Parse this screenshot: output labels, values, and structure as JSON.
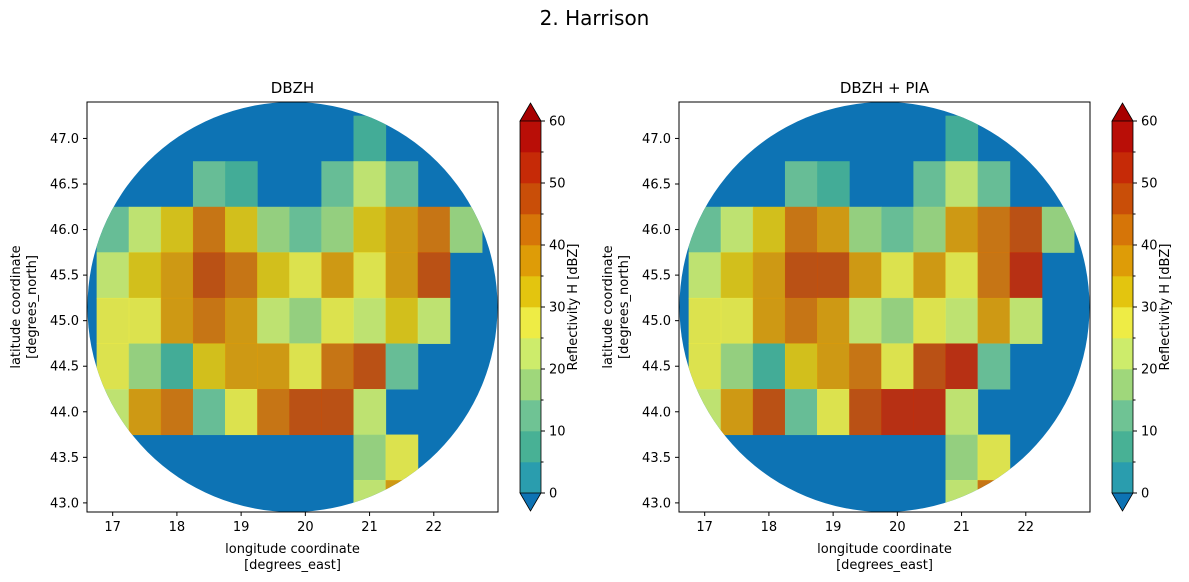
{
  "figure": {
    "suptitle": "2. Harrison"
  },
  "colorbar": {
    "label": "Reflectivity H [dBZ]",
    "ticks": [
      0,
      10,
      20,
      30,
      40,
      50,
      60
    ],
    "colors": [
      "#0d73b4",
      "#2a9dae",
      "#48b195",
      "#6fc394",
      "#9fd77b",
      "#cdec6b",
      "#eeec45",
      "#e3c50f",
      "#de9c07",
      "#d67508",
      "#c94e08",
      "#c62a07",
      "#b90e07",
      "#a70000"
    ]
  },
  "chart_data": [
    {
      "type": "heatmap",
      "title": "DBZH",
      "xlabel": "longitude coordinate\n[degrees_east]",
      "ylabel": "latitude coordinate\n[degrees_north]",
      "xlim": [
        16.6,
        23.0
      ],
      "ylim": [
        42.9,
        47.4
      ],
      "xticks": [
        17,
        18,
        19,
        20,
        21,
        22
      ],
      "yticks": [
        43.0,
        43.5,
        44.0,
        44.5,
        45.0,
        45.5,
        46.0,
        46.5,
        47.0
      ],
      "x": [
        17.0,
        17.5,
        18.0,
        18.5,
        19.0,
        19.5,
        20.0,
        20.5,
        21.0,
        21.5,
        22.0,
        22.5
      ],
      "y": [
        47.0,
        46.5,
        46.0,
        45.5,
        45.0,
        44.5,
        44.0,
        43.5,
        43.0
      ],
      "z": [
        [
          0,
          0,
          0,
          0,
          0,
          0,
          0,
          0,
          5,
          0,
          0,
          0
        ],
        [
          0,
          0,
          0,
          10,
          5,
          0,
          0,
          10,
          20,
          10,
          0,
          0
        ],
        [
          10,
          20,
          30,
          40,
          30,
          15,
          10,
          15,
          30,
          35,
          40,
          15
        ],
        [
          20,
          30,
          35,
          45,
          40,
          30,
          25,
          35,
          25,
          35,
          45,
          0
        ],
        [
          25,
          25,
          35,
          40,
          35,
          20,
          15,
          25,
          20,
          30,
          20,
          0
        ],
        [
          25,
          15,
          5,
          30,
          35,
          35,
          25,
          40,
          45,
          10,
          0,
          0
        ],
        [
          20,
          35,
          40,
          10,
          25,
          40,
          45,
          45,
          20,
          0,
          0,
          0
        ],
        [
          0,
          0,
          0,
          0,
          0,
          0,
          0,
          0,
          15,
          25,
          0,
          0
        ],
        [
          0,
          0,
          0,
          0,
          0,
          0,
          0,
          0,
          20,
          35,
          0,
          0
        ]
      ],
      "colorbar_label": "Reflectivity H [dBZ]",
      "vmin": 0,
      "vmax": 60
    },
    {
      "type": "heatmap",
      "title": "DBZH + PIA",
      "xlabel": "longitude coordinate\n[degrees_east]",
      "ylabel": "latitude coordinate\n[degrees_north]",
      "xlim": [
        16.6,
        23.0
      ],
      "ylim": [
        42.9,
        47.4
      ],
      "xticks": [
        17,
        18,
        19,
        20,
        21,
        22
      ],
      "yticks": [
        43.0,
        43.5,
        44.0,
        44.5,
        45.0,
        45.5,
        46.0,
        46.5,
        47.0
      ],
      "x": [
        17.0,
        17.5,
        18.0,
        18.5,
        19.0,
        19.5,
        20.0,
        20.5,
        21.0,
        21.5,
        22.0,
        22.5
      ],
      "y": [
        47.0,
        46.5,
        46.0,
        45.5,
        45.0,
        44.5,
        44.0,
        43.5,
        43.0
      ],
      "z": [
        [
          0,
          0,
          0,
          0,
          0,
          0,
          0,
          0,
          5,
          0,
          0,
          0
        ],
        [
          0,
          0,
          0,
          10,
          5,
          0,
          0,
          10,
          20,
          10,
          0,
          0
        ],
        [
          10,
          20,
          30,
          40,
          35,
          15,
          10,
          15,
          35,
          40,
          45,
          15
        ],
        [
          20,
          30,
          35,
          45,
          45,
          35,
          25,
          35,
          25,
          40,
          50,
          0
        ],
        [
          25,
          25,
          35,
          40,
          35,
          20,
          15,
          25,
          20,
          35,
          20,
          0
        ],
        [
          25,
          15,
          5,
          30,
          35,
          40,
          25,
          45,
          50,
          10,
          0,
          0
        ],
        [
          20,
          35,
          45,
          10,
          25,
          45,
          50,
          50,
          20,
          0,
          0,
          0
        ],
        [
          0,
          0,
          0,
          0,
          0,
          0,
          0,
          0,
          15,
          25,
          0,
          0
        ],
        [
          0,
          0,
          0,
          0,
          0,
          0,
          0,
          0,
          20,
          40,
          0,
          0
        ]
      ],
      "colorbar_label": "Reflectivity H [dBZ]",
      "vmin": 0,
      "vmax": 60
    }
  ]
}
